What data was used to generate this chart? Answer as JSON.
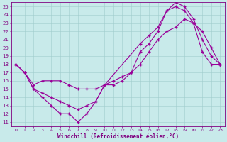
{
  "background_color": "#c8eaea",
  "line_color": "#990099",
  "xlabel": "Windchill (Refroidissement éolien,°C)",
  "xlim": [
    -0.5,
    23.5
  ],
  "ylim": [
    10.5,
    25.5
  ],
  "xticks": [
    0,
    1,
    2,
    3,
    4,
    5,
    6,
    7,
    8,
    9,
    10,
    11,
    12,
    13,
    14,
    15,
    16,
    17,
    18,
    19,
    20,
    21,
    22,
    23
  ],
  "yticks": [
    11,
    12,
    13,
    14,
    15,
    16,
    17,
    18,
    19,
    20,
    21,
    22,
    23,
    24,
    25
  ],
  "line1_x": [
    0,
    1,
    2,
    3,
    4,
    5,
    6,
    7,
    8,
    9,
    10,
    11,
    12,
    13,
    14,
    15,
    16,
    17,
    18,
    19,
    20,
    21,
    22,
    23
  ],
  "line1_y": [
    18,
    17,
    15,
    14.5,
    14,
    13.5,
    13,
    12.5,
    13,
    13.5,
    15.5,
    15.5,
    16,
    17,
    19.5,
    20.5,
    22,
    24.5,
    25,
    24.5,
    23,
    19.5,
    18,
    18
  ],
  "line2_x": [
    0,
    1,
    2,
    3,
    4,
    5,
    6,
    7,
    8,
    9,
    10,
    11,
    12,
    13,
    14,
    15,
    16,
    17,
    18,
    19,
    20,
    21,
    22,
    23
  ],
  "line2_y": [
    18,
    17,
    15.5,
    16,
    16,
    16,
    15.5,
    15,
    15,
    15,
    15.5,
    16,
    16.5,
    17,
    18,
    19.5,
    21,
    22,
    22.5,
    23.5,
    23,
    22,
    20,
    18
  ],
  "line3_x": [
    0,
    1,
    2,
    3,
    4,
    5,
    6,
    7,
    8,
    9,
    10,
    14,
    15,
    16,
    17,
    18,
    19,
    20,
    21,
    22,
    23
  ],
  "line3_y": [
    18,
    17,
    15,
    14,
    13,
    12,
    12,
    11,
    12,
    13.5,
    15.5,
    20.5,
    21.5,
    22.5,
    24.5,
    25.5,
    25,
    23.5,
    21,
    19,
    18
  ]
}
